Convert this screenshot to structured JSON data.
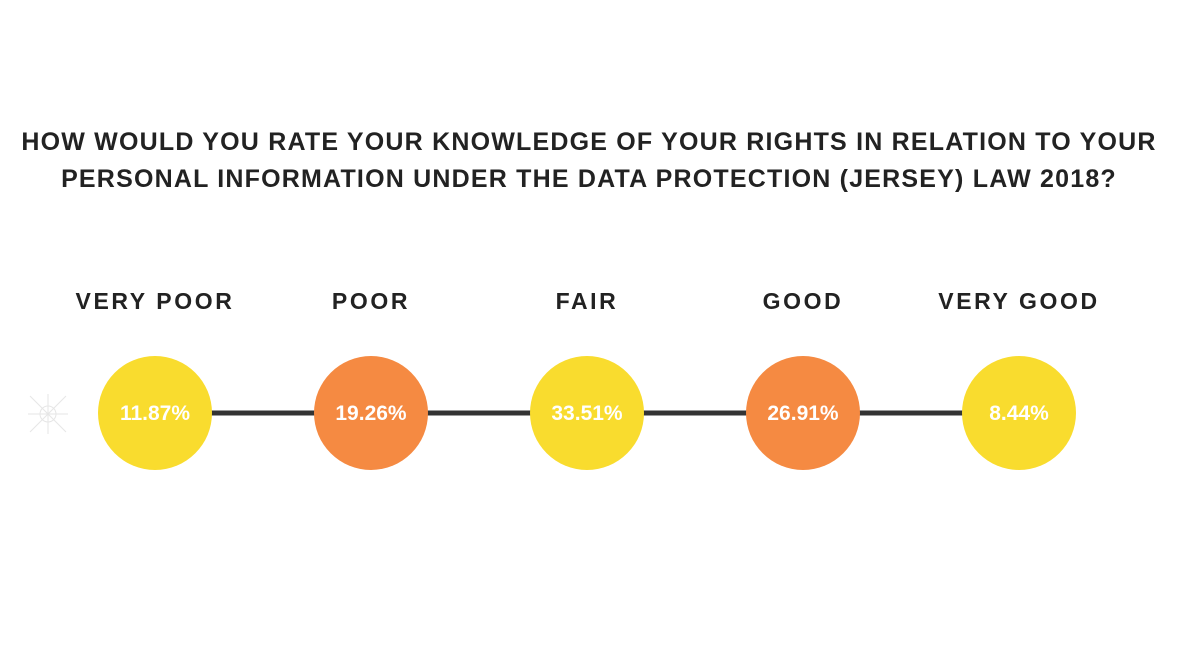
{
  "colors": {
    "yellow": "#F9DC2E",
    "orange": "#F58A42",
    "line": "#333333",
    "text": "#222222"
  },
  "chart_data": {
    "type": "bar",
    "title": "HOW WOULD YOU RATE YOUR KNOWLEDGE OF YOUR RIGHTS IN RELATION TO YOUR PERSONAL INFORMATION UNDER THE DATA PROTECTION (JERSEY) LAW 2018?",
    "title_lines": [
      "HOW WOULD YOU RATE YOUR KNOWLEDGE OF YOUR RIGHTS IN RELATION TO YOUR",
      "PERSONAL INFORMATION UNDER THE DATA PROTECTION (JERSEY) LAW 2018?"
    ],
    "categories": [
      "VERY POOR",
      "POOR",
      "FAIR",
      "GOOD",
      "VERY GOOD"
    ],
    "values": [
      11.87,
      19.26,
      33.51,
      26.91,
      8.44
    ],
    "value_labels": [
      "11.87%",
      "19.26%",
      "33.51%",
      "26.91%",
      "8.44%"
    ],
    "point_colors": [
      "yellow",
      "orange",
      "yellow",
      "orange",
      "yellow"
    ],
    "unit": "%"
  },
  "decor": {
    "watermark_icon": "faint-starburst-icon"
  }
}
